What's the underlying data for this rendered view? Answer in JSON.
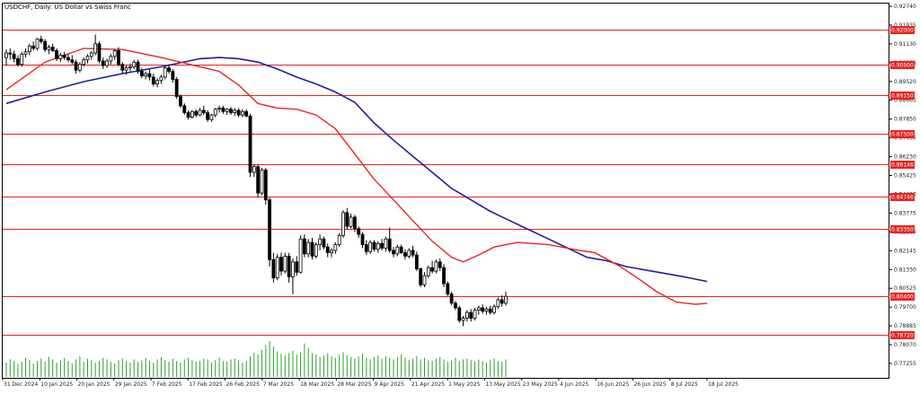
{
  "chart_data": {
    "type": "candlestick",
    "title": "USDCHF, Daily:  US Dollar vs Swiss Franc",
    "y_ticks": [
      "0.92740",
      "0.91935",
      "0.91130",
      "0.90325",
      "0.89520",
      "0.88665",
      "0.87850",
      "0.87035",
      "0.86230",
      "0.85425",
      "0.84620",
      "0.83775",
      "0.82960",
      "0.82145",
      "0.81330",
      "0.80525",
      "0.79700",
      "0.78885",
      "0.78070",
      "0.77255"
    ],
    "ylim": [
      0.7685,
      0.9315
    ],
    "x_ticks": [
      "31 Dec 2024",
      "10 Jan 2025",
      "20 Jan 2025",
      "29 Jan 2025",
      "7 Feb 2025",
      "17 Feb 2025",
      "26 Feb 2025",
      "7 Mar 2025",
      "18 Mar 2025",
      "28 Mar 2025",
      "9 Apr 2025",
      "21 Apr 2025",
      "1 May 2025",
      "13 May 2025",
      "23 May 2025",
      "4 Jun 2025",
      "16 Jun 2025",
      "26 Jun 2025",
      "8 Jul 2025",
      "18 Jul 2025"
    ],
    "levels": [
      {
        "value": 0.92,
        "label": "0.92000"
      },
      {
        "value": 0.905,
        "label": "0.90500"
      },
      {
        "value": 0.8915,
        "label": "0.89150"
      },
      {
        "value": 0.875,
        "label": "0.87500"
      },
      {
        "value": 0.86146,
        "label": "0.86146"
      },
      {
        "value": 0.84746,
        "label": "0.84746"
      },
      {
        "value": 0.8335,
        "label": "0.83350"
      },
      {
        "value": 0.804,
        "label": "0.80400"
      },
      {
        "value": 0.7872,
        "label": "0.78720"
      }
    ],
    "candles": [
      [
        0.908,
        0.9115,
        0.9045,
        0.91
      ],
      [
        0.91,
        0.912,
        0.907,
        0.9095
      ],
      [
        0.9095,
        0.911,
        0.906,
        0.9075
      ],
      [
        0.9075,
        0.909,
        0.904,
        0.905
      ],
      [
        0.905,
        0.9105,
        0.904,
        0.9095
      ],
      [
        0.9095,
        0.912,
        0.908,
        0.9105
      ],
      [
        0.9105,
        0.914,
        0.909,
        0.913
      ],
      [
        0.913,
        0.915,
        0.911,
        0.912
      ],
      [
        0.912,
        0.9165,
        0.911,
        0.916
      ],
      [
        0.916,
        0.9175,
        0.914,
        0.915
      ],
      [
        0.915,
        0.916,
        0.9105,
        0.9115
      ],
      [
        0.9115,
        0.9135,
        0.9095,
        0.9125
      ],
      [
        0.9125,
        0.914,
        0.9105,
        0.911
      ],
      [
        0.911,
        0.912,
        0.9065,
        0.9075
      ],
      [
        0.9075,
        0.91,
        0.906,
        0.909
      ],
      [
        0.909,
        0.9105,
        0.907,
        0.908
      ],
      [
        0.908,
        0.9095,
        0.906,
        0.907
      ],
      [
        0.907,
        0.909,
        0.905,
        0.906
      ],
      [
        0.906,
        0.907,
        0.901,
        0.9025
      ],
      [
        0.9025,
        0.906,
        0.9015,
        0.905
      ],
      [
        0.905,
        0.908,
        0.904,
        0.907
      ],
      [
        0.907,
        0.9095,
        0.9055,
        0.9085
      ],
      [
        0.9085,
        0.911,
        0.907,
        0.91
      ],
      [
        0.91,
        0.918,
        0.909,
        0.914
      ],
      [
        0.914,
        0.915,
        0.9055,
        0.9065
      ],
      [
        0.9065,
        0.908,
        0.903,
        0.9045
      ],
      [
        0.9045,
        0.9075,
        0.9035,
        0.9065
      ],
      [
        0.9065,
        0.9095,
        0.905,
        0.9085
      ],
      [
        0.9085,
        0.9115,
        0.907,
        0.911
      ],
      [
        0.911,
        0.9125,
        0.904,
        0.905
      ],
      [
        0.905,
        0.906,
        0.901,
        0.9025
      ],
      [
        0.9025,
        0.9045,
        0.9005,
        0.9035
      ],
      [
        0.9035,
        0.9055,
        0.902,
        0.904
      ],
      [
        0.904,
        0.907,
        0.903,
        0.906
      ],
      [
        0.906,
        0.907,
        0.901,
        0.902
      ],
      [
        0.902,
        0.9035,
        0.899,
        0.9
      ],
      [
        0.9,
        0.902,
        0.8985,
        0.901
      ],
      [
        0.901,
        0.903,
        0.898,
        0.8995
      ],
      [
        0.8995,
        0.901,
        0.8955,
        0.8965
      ],
      [
        0.8965,
        0.899,
        0.895,
        0.898
      ],
      [
        0.898,
        0.9005,
        0.8965,
        0.8995
      ],
      [
        0.8995,
        0.9045,
        0.8985,
        0.9035
      ],
      [
        0.9035,
        0.905,
        0.901,
        0.902
      ],
      [
        0.902,
        0.903,
        0.897,
        0.8985
      ],
      [
        0.8985,
        0.8995,
        0.89,
        0.891
      ],
      [
        0.891,
        0.892,
        0.886,
        0.887
      ],
      [
        0.887,
        0.888,
        0.883,
        0.884
      ],
      [
        0.884,
        0.885,
        0.881,
        0.882
      ],
      [
        0.882,
        0.885,
        0.8815,
        0.8845
      ],
      [
        0.8845,
        0.8855,
        0.882,
        0.883
      ],
      [
        0.883,
        0.886,
        0.8825,
        0.885
      ],
      [
        0.885,
        0.887,
        0.883,
        0.884
      ],
      [
        0.884,
        0.885,
        0.88,
        0.881
      ],
      [
        0.881,
        0.8835,
        0.88,
        0.883
      ],
      [
        0.883,
        0.886,
        0.882,
        0.8855
      ],
      [
        0.8855,
        0.887,
        0.884,
        0.886
      ],
      [
        0.886,
        0.887,
        0.8835,
        0.8845
      ],
      [
        0.8845,
        0.886,
        0.883,
        0.8855
      ],
      [
        0.8855,
        0.8865,
        0.883,
        0.884
      ],
      [
        0.884,
        0.886,
        0.8825,
        0.885
      ],
      [
        0.885,
        0.886,
        0.882,
        0.883
      ],
      [
        0.883,
        0.8855,
        0.882,
        0.8845
      ],
      [
        0.8845,
        0.8855,
        0.882,
        0.8825
      ],
      [
        0.8825,
        0.8835,
        0.856,
        0.858
      ],
      [
        0.858,
        0.8615,
        0.856,
        0.8605
      ],
      [
        0.8605,
        0.8615,
        0.847,
        0.849
      ],
      [
        0.849,
        0.86,
        0.848,
        0.859
      ],
      [
        0.859,
        0.86,
        0.844,
        0.846
      ],
      [
        0.846,
        0.847,
        0.817,
        0.82
      ],
      [
        0.82,
        0.823,
        0.81,
        0.812
      ],
      [
        0.812,
        0.8225,
        0.811,
        0.821
      ],
      [
        0.821,
        0.823,
        0.813,
        0.815
      ],
      [
        0.815,
        0.823,
        0.814,
        0.8215
      ],
      [
        0.8215,
        0.823,
        0.81,
        0.8125
      ],
      [
        0.8125,
        0.8205,
        0.805,
        0.819
      ],
      [
        0.819,
        0.8215,
        0.813,
        0.8145
      ],
      [
        0.8145,
        0.8305,
        0.814,
        0.829
      ],
      [
        0.829,
        0.831,
        0.821,
        0.8225
      ],
      [
        0.8225,
        0.829,
        0.821,
        0.8275
      ],
      [
        0.8275,
        0.8295,
        0.82,
        0.8215
      ],
      [
        0.8215,
        0.8275,
        0.8205,
        0.8265
      ],
      [
        0.8265,
        0.831,
        0.824,
        0.829
      ],
      [
        0.829,
        0.83,
        0.8245,
        0.8255
      ],
      [
        0.8255,
        0.827,
        0.821,
        0.823
      ],
      [
        0.823,
        0.825,
        0.821,
        0.824
      ],
      [
        0.824,
        0.8275,
        0.8225,
        0.8265
      ],
      [
        0.8265,
        0.8315,
        0.8255,
        0.8305
      ],
      [
        0.8305,
        0.8415,
        0.8295,
        0.8405
      ],
      [
        0.8405,
        0.8425,
        0.833,
        0.8345
      ],
      [
        0.8345,
        0.84,
        0.8335,
        0.8385
      ],
      [
        0.8385,
        0.8395,
        0.832,
        0.8335
      ],
      [
        0.8335,
        0.8345,
        0.8295,
        0.831
      ],
      [
        0.831,
        0.832,
        0.825,
        0.8265
      ],
      [
        0.8265,
        0.8285,
        0.822,
        0.8235
      ],
      [
        0.8235,
        0.8285,
        0.8225,
        0.8275
      ],
      [
        0.8275,
        0.8285,
        0.8235,
        0.8245
      ],
      [
        0.8245,
        0.828,
        0.823,
        0.827
      ],
      [
        0.827,
        0.829,
        0.824,
        0.825
      ],
      [
        0.825,
        0.83,
        0.8235,
        0.829
      ],
      [
        0.829,
        0.834,
        0.823,
        0.824
      ],
      [
        0.824,
        0.8255,
        0.821,
        0.8225
      ],
      [
        0.8225,
        0.8265,
        0.8215,
        0.8255
      ],
      [
        0.8255,
        0.8265,
        0.8225,
        0.823
      ],
      [
        0.823,
        0.8245,
        0.82,
        0.8215
      ],
      [
        0.8215,
        0.825,
        0.8205,
        0.824
      ],
      [
        0.824,
        0.826,
        0.821,
        0.822
      ],
      [
        0.822,
        0.8235,
        0.815,
        0.816
      ],
      [
        0.816,
        0.8165,
        0.808,
        0.809
      ],
      [
        0.809,
        0.8145,
        0.808,
        0.813
      ],
      [
        0.813,
        0.8175,
        0.812,
        0.8165
      ],
      [
        0.8165,
        0.8195,
        0.814,
        0.815
      ],
      [
        0.815,
        0.82,
        0.814,
        0.819
      ],
      [
        0.819,
        0.8205,
        0.815,
        0.8165
      ],
      [
        0.8165,
        0.818,
        0.808,
        0.8095
      ],
      [
        0.8095,
        0.8105,
        0.804,
        0.805
      ],
      [
        0.805,
        0.806,
        0.8,
        0.801
      ],
      [
        0.801,
        0.802,
        0.798,
        0.799
      ],
      [
        0.799,
        0.8,
        0.7925,
        0.7935
      ],
      [
        0.7935,
        0.7955,
        0.791,
        0.7945
      ],
      [
        0.7945,
        0.798,
        0.793,
        0.797
      ],
      [
        0.797,
        0.7985,
        0.793,
        0.7945
      ],
      [
        0.7945,
        0.799,
        0.7935,
        0.798
      ],
      [
        0.798,
        0.8,
        0.796,
        0.799
      ],
      [
        0.799,
        0.8005,
        0.7965,
        0.7975
      ],
      [
        0.7975,
        0.7995,
        0.796,
        0.7985
      ],
      [
        0.7985,
        0.8,
        0.796,
        0.797
      ],
      [
        0.797,
        0.8005,
        0.796,
        0.7995
      ],
      [
        0.7995,
        0.8035,
        0.7985,
        0.8025
      ],
      [
        0.8025,
        0.8045,
        0.7995,
        0.801
      ],
      [
        0.801,
        0.806,
        0.8,
        0.804
      ]
    ],
    "ma_fast": [
      [
        0,
        0.894
      ],
      [
        10,
        0.906
      ],
      [
        20,
        0.912
      ],
      [
        30,
        0.9115
      ],
      [
        40,
        0.908
      ],
      [
        50,
        0.904
      ],
      [
        55,
        0.902
      ],
      [
        60,
        0.896
      ],
      [
        65,
        0.888
      ],
      [
        70,
        0.886
      ],
      [
        75,
        0.8855
      ],
      [
        80,
        0.883
      ],
      [
        85,
        0.877
      ],
      [
        90,
        0.866
      ],
      [
        95,
        0.855
      ],
      [
        100,
        0.846
      ],
      [
        105,
        0.837
      ],
      [
        110,
        0.828
      ],
      [
        115,
        0.821
      ],
      [
        118,
        0.819
      ],
      [
        122,
        0.822
      ],
      [
        126,
        0.8255
      ],
      [
        132,
        0.8275
      ],
      [
        140,
        0.8265
      ],
      [
        148,
        0.824
      ],
      [
        152,
        0.823
      ],
      [
        158,
        0.8175
      ],
      [
        163,
        0.812
      ],
      [
        168,
        0.806
      ],
      [
        173,
        0.8015
      ],
      [
        178,
        0.8005
      ],
      [
        181,
        0.801
      ]
    ],
    "ma_slow": [
      [
        0,
        0.888
      ],
      [
        10,
        0.893
      ],
      [
        20,
        0.8975
      ],
      [
        30,
        0.901
      ],
      [
        40,
        0.904
      ],
      [
        50,
        0.9075
      ],
      [
        55,
        0.908
      ],
      [
        60,
        0.9075
      ],
      [
        65,
        0.906
      ],
      [
        70,
        0.903
      ],
      [
        75,
        0.8995
      ],
      [
        80,
        0.8965
      ],
      [
        85,
        0.893
      ],
      [
        90,
        0.8885
      ],
      [
        95,
        0.8795
      ],
      [
        100,
        0.872
      ],
      [
        105,
        0.865
      ],
      [
        110,
        0.858
      ],
      [
        115,
        0.851
      ],
      [
        120,
        0.846
      ],
      [
        125,
        0.841
      ],
      [
        130,
        0.837
      ],
      [
        135,
        0.833
      ],
      [
        140,
        0.829
      ],
      [
        145,
        0.825
      ],
      [
        150,
        0.821
      ],
      [
        155,
        0.8195
      ],
      [
        160,
        0.817
      ],
      [
        165,
        0.8155
      ],
      [
        170,
        0.814
      ],
      [
        175,
        0.8125
      ],
      [
        181,
        0.8105
      ]
    ],
    "volume": [
      18,
      22,
      20,
      16,
      19,
      24,
      21,
      17,
      20,
      23,
      19,
      25,
      22,
      18,
      21,
      24,
      20,
      17,
      22,
      26,
      19,
      23,
      21,
      18,
      20,
      24,
      22,
      19,
      17,
      21,
      23,
      20,
      18,
      22,
      19,
      21,
      24,
      20,
      18,
      22,
      25,
      21,
      19,
      23,
      20,
      18,
      22,
      24,
      21,
      19,
      20,
      23,
      22,
      18,
      21,
      24,
      20,
      19,
      22,
      23,
      21,
      18,
      20,
      26,
      30,
      28,
      34,
      40,
      45,
      38,
      32,
      29,
      27,
      30,
      33,
      28,
      31,
      42,
      36,
      30,
      28,
      25,
      27,
      30,
      26,
      24,
      28,
      31,
      27,
      25,
      23,
      26,
      29,
      24,
      22,
      25,
      27,
      23,
      26,
      24,
      22,
      25,
      28,
      24,
      21,
      23,
      26,
      22,
      24,
      21,
      20,
      23,
      25,
      22,
      19,
      21,
      24,
      20,
      22,
      23,
      21,
      19,
      22,
      20,
      18,
      21,
      23,
      20,
      19,
      22,
      24,
      21,
      23
    ]
  }
}
